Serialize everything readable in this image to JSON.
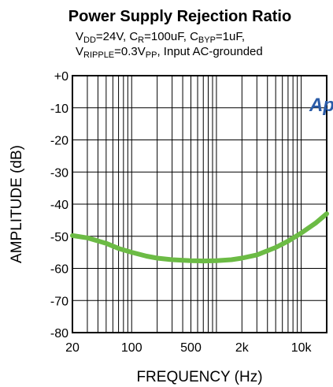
{
  "chart_data": {
    "type": "line",
    "title": "Power Supply Rejection Ratio",
    "conditions": {
      "line1": [
        {
          "t": "V",
          "sub": "DD"
        },
        {
          "t": "=24V, C",
          "sub": "R"
        },
        {
          "t": "=100uF, C",
          "sub": "BYP"
        },
        {
          "t": "=1uF,",
          "sub": ""
        }
      ],
      "line2": [
        {
          "t": "V",
          "sub": "RIPPLE"
        },
        {
          "t": "=0.3V",
          "sub": "PP"
        },
        {
          "t": ", Input AC-grounded",
          "sub": ""
        }
      ]
    },
    "xlabel": "FREQUENCY (Hz)",
    "ylabel": "AMPLITUDE (dB)",
    "xscale": "log",
    "xlim": [
      20,
      20000
    ],
    "ylim": [
      -80,
      0
    ],
    "grid": true,
    "x_ticks": [
      {
        "value": 20,
        "label": "20"
      },
      {
        "value": 100,
        "label": "100"
      },
      {
        "value": 500,
        "label": "500"
      },
      {
        "value": 2000,
        "label": "2k"
      },
      {
        "value": 10000,
        "label": "10k"
      }
    ],
    "y_ticks": [
      {
        "value": 0,
        "label": "+0"
      },
      {
        "value": -10,
        "label": "-10"
      },
      {
        "value": -20,
        "label": "-20"
      },
      {
        "value": -30,
        "label": "-30"
      },
      {
        "value": -40,
        "label": "-40"
      },
      {
        "value": -50,
        "label": "-50"
      },
      {
        "value": -60,
        "label": "-60"
      },
      {
        "value": -70,
        "label": "-70"
      },
      {
        "value": -80,
        "label": "-80"
      }
    ],
    "series": [
      {
        "color": "#6cbb45",
        "x": [
          20,
          30,
          50,
          70,
          100,
          150,
          200,
          300,
          500,
          700,
          1000,
          1500,
          2000,
          3000,
          5000,
          7000,
          10000,
          15000,
          20000
        ],
        "y": [
          -49.8,
          -50.5,
          -52.2,
          -53.8,
          -55.0,
          -56.2,
          -56.8,
          -57.3,
          -57.6,
          -57.7,
          -57.6,
          -57.3,
          -56.8,
          -55.8,
          -53.5,
          -51.5,
          -49.0,
          -45.8,
          -43.0
        ]
      }
    ]
  },
  "logo": {
    "text": "Ap",
    "color": "#2b5ca8"
  }
}
